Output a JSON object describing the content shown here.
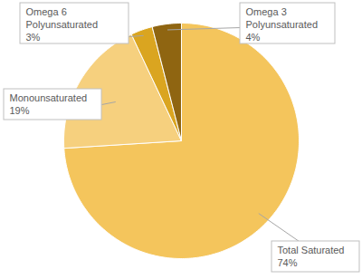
{
  "chart_data": {
    "type": "pie",
    "categories": [
      "Total Saturated",
      "Monounsaturated",
      "Omega 6 Polyunsaturated",
      "Omega 3 Polyunsaturated"
    ],
    "values": [
      74,
      19,
      3,
      4
    ],
    "value_labels": [
      "74%",
      "19%",
      "3%",
      "4%"
    ],
    "colors": [
      "#f4c55c",
      "#f6d07e",
      "#daa520",
      "#8f6511"
    ],
    "data_labels": true
  }
}
